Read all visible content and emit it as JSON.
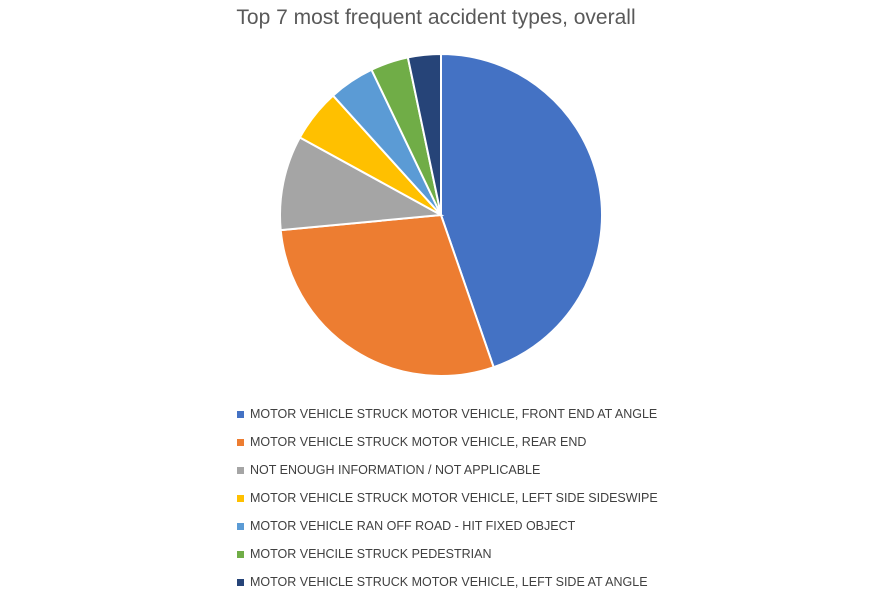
{
  "chart_data": {
    "type": "pie",
    "title": "Top 7 most frequent accident types, overall",
    "legend_position": "bottom",
    "start_angle_deg": 0,
    "direction": "clockwise",
    "series": [
      {
        "categories": [
          "MOTOR VEHICLE STRUCK MOTOR VEHICLE, FRONT END AT ANGLE",
          "MOTOR VEHICLE STRUCK MOTOR VEHICLE, REAR END",
          "NOT ENOUGH INFORMATION / NOT APPLICABLE",
          "MOTOR VEHICLE STRUCK MOTOR VEHICLE, LEFT SIDE SIDESWIPE",
          "MOTOR VEHICLE RAN OFF ROAD - HIT FIXED OBJECT",
          "MOTOR VEHCILE STRUCK PEDESTRIAN",
          "MOTOR VEHICLE STRUCK MOTOR VEHICLE, LEFT SIDE AT ANGLE"
        ],
        "values": [
          44.7,
          28.8,
          9.5,
          5.3,
          4.6,
          3.8,
          3.3
        ],
        "colors": [
          "#4472C4",
          "#ED7D31",
          "#A5A5A5",
          "#FFC000",
          "#5B9BD5",
          "#70AD47",
          "#264478"
        ]
      }
    ]
  }
}
